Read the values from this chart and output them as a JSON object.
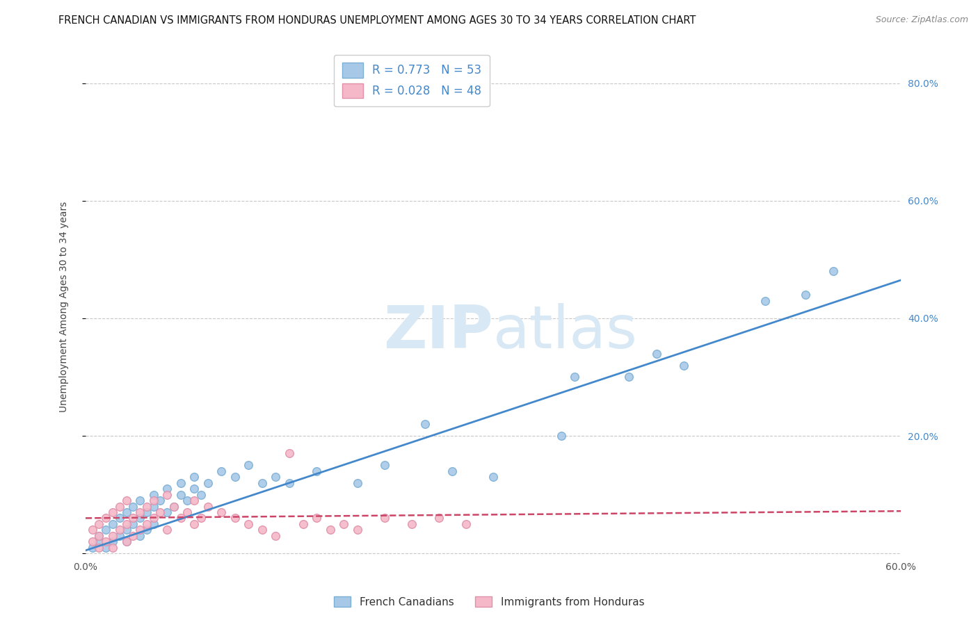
{
  "title": "FRENCH CANADIAN VS IMMIGRANTS FROM HONDURAS UNEMPLOYMENT AMONG AGES 30 TO 34 YEARS CORRELATION CHART",
  "source": "Source: ZipAtlas.com",
  "xlabel": "",
  "ylabel": "Unemployment Among Ages 30 to 34 years",
  "xlim": [
    0.0,
    0.6
  ],
  "ylim": [
    -0.01,
    0.85
  ],
  "x_ticks": [
    0.0,
    0.1,
    0.2,
    0.3,
    0.4,
    0.5,
    0.6
  ],
  "x_tick_labels": [
    "0.0%",
    "",
    "",
    "",
    "",
    "",
    "60.0%"
  ],
  "y_ticks_left": [
    0.0,
    0.2,
    0.4,
    0.6,
    0.8
  ],
  "y_tick_labels_right": [
    "",
    "20.0%",
    "40.0%",
    "60.0%",
    "80.0%"
  ],
  "legend_R1": "R = 0.773",
  "legend_N1": "N = 53",
  "legend_R2": "R = 0.028",
  "legend_N2": "N = 48",
  "color_blue": "#a8c8e8",
  "color_blue_edge": "#7bafd4",
  "color_pink": "#f4b8c8",
  "color_pink_edge": "#e090a8",
  "color_blue_line": "#4488cc",
  "color_pink_line": "#cc4466",
  "watermark_color": "#d8e8f4",
  "legend_label1": "French Canadians",
  "legend_label2": "Immigrants from Honduras",
  "blue_scatter_x": [
    0.005,
    0.01,
    0.01,
    0.015,
    0.015,
    0.02,
    0.02,
    0.025,
    0.025,
    0.03,
    0.03,
    0.03,
    0.035,
    0.035,
    0.04,
    0.04,
    0.04,
    0.045,
    0.045,
    0.05,
    0.05,
    0.05,
    0.055,
    0.06,
    0.06,
    0.065,
    0.07,
    0.07,
    0.075,
    0.08,
    0.08,
    0.085,
    0.09,
    0.1,
    0.11,
    0.12,
    0.13,
    0.14,
    0.15,
    0.17,
    0.2,
    0.22,
    0.25,
    0.27,
    0.3,
    0.35,
    0.36,
    0.4,
    0.42,
    0.44,
    0.5,
    0.53,
    0.55
  ],
  "blue_scatter_y": [
    0.01,
    0.02,
    0.03,
    0.01,
    0.04,
    0.02,
    0.05,
    0.03,
    0.06,
    0.04,
    0.07,
    0.02,
    0.05,
    0.08,
    0.06,
    0.03,
    0.09,
    0.07,
    0.04,
    0.08,
    0.05,
    0.1,
    0.09,
    0.07,
    0.11,
    0.08,
    0.12,
    0.1,
    0.09,
    0.11,
    0.13,
    0.1,
    0.12,
    0.14,
    0.13,
    0.15,
    0.12,
    0.13,
    0.12,
    0.14,
    0.12,
    0.15,
    0.22,
    0.14,
    0.13,
    0.2,
    0.3,
    0.3,
    0.34,
    0.32,
    0.43,
    0.44,
    0.48
  ],
  "pink_scatter_x": [
    0.005,
    0.005,
    0.01,
    0.01,
    0.01,
    0.015,
    0.015,
    0.02,
    0.02,
    0.02,
    0.025,
    0.025,
    0.03,
    0.03,
    0.03,
    0.035,
    0.035,
    0.04,
    0.04,
    0.045,
    0.045,
    0.05,
    0.05,
    0.055,
    0.06,
    0.06,
    0.065,
    0.07,
    0.075,
    0.08,
    0.08,
    0.085,
    0.09,
    0.1,
    0.11,
    0.12,
    0.13,
    0.14,
    0.15,
    0.16,
    0.17,
    0.18,
    0.19,
    0.2,
    0.22,
    0.24,
    0.26,
    0.28
  ],
  "pink_scatter_y": [
    0.02,
    0.04,
    0.01,
    0.03,
    0.05,
    0.02,
    0.06,
    0.03,
    0.07,
    0.01,
    0.04,
    0.08,
    0.05,
    0.02,
    0.09,
    0.06,
    0.03,
    0.07,
    0.04,
    0.08,
    0.05,
    0.09,
    0.06,
    0.07,
    0.1,
    0.04,
    0.08,
    0.06,
    0.07,
    0.05,
    0.09,
    0.06,
    0.08,
    0.07,
    0.06,
    0.05,
    0.04,
    0.03,
    0.17,
    0.05,
    0.06,
    0.04,
    0.05,
    0.04,
    0.06,
    0.05,
    0.06,
    0.05
  ],
  "blue_line_x": [
    0.0,
    0.6
  ],
  "blue_line_y": [
    0.005,
    0.465
  ],
  "pink_line_x": [
    0.0,
    0.6
  ],
  "pink_line_y": [
    0.06,
    0.072
  ],
  "background_color": "#ffffff",
  "grid_color": "#c8c8c8",
  "title_fontsize": 10.5,
  "axis_label_fontsize": 10,
  "tick_fontsize": 10,
  "source_fontsize": 9,
  "right_tick_color": "#4488cc"
}
